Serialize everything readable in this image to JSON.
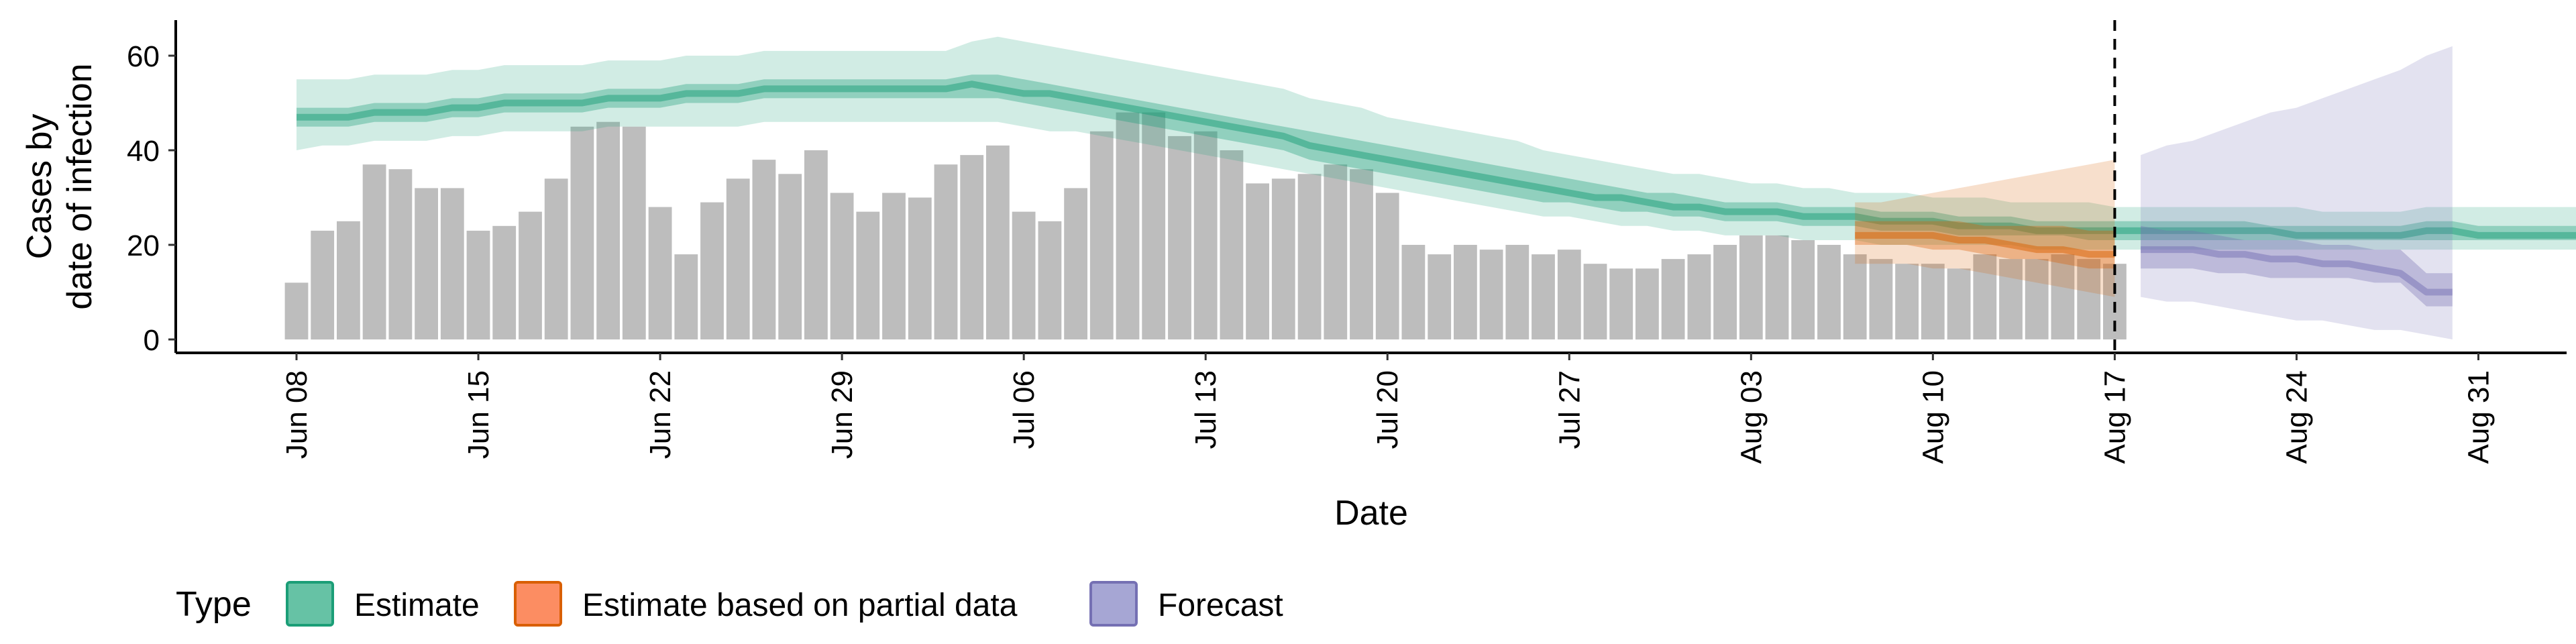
{
  "chart_data": {
    "type": "bar",
    "xlabel": "Date",
    "ylabel": [
      "Cases by",
      "date of infection"
    ],
    "ylim": [
      -3,
      67
    ],
    "y_ticks": [
      0,
      20,
      40,
      60
    ],
    "x_ticks": [
      "Jun 08",
      "Jun 15",
      "Jun 22",
      "Jun 29",
      "Jul 06",
      "Jul 13",
      "Jul 20",
      "Jul 27",
      "Aug 03",
      "Aug 10",
      "Aug 17",
      "Aug 24",
      "Aug 31"
    ],
    "vline_date": "Aug 17",
    "grid": false,
    "legend_position": "bottom-left",
    "legend_title": "Type",
    "legend": [
      {
        "key": "estimate",
        "label": "Estimate",
        "fill": "#66c2a5",
        "stroke": "#1b9e77"
      },
      {
        "key": "partial",
        "label": "Estimate based on partial data",
        "fill": "#fc8d62",
        "stroke": "#d95f02"
      },
      {
        "key": "forecast",
        "label": "Forecast",
        "fill": "#a6a6d4",
        "stroke": "#7570b3"
      }
    ],
    "colors": {
      "bars": "#bdbdbd",
      "estimate": "#1b9e77",
      "partial": "#d95f02",
      "forecast": "#7570b3"
    },
    "bars": {
      "start_date": "Jun 08",
      "values": [
        12,
        23,
        25,
        37,
        36,
        32,
        32,
        23,
        24,
        27,
        34,
        45,
        46,
        45,
        28,
        18,
        29,
        34,
        38,
        35,
        40,
        31,
        27,
        31,
        30,
        37,
        39,
        41,
        27,
        25,
        32,
        44,
        48,
        48,
        43,
        44,
        40,
        33,
        34,
        35,
        37,
        36,
        31,
        20,
        18,
        20,
        19,
        20,
        18,
        19,
        16,
        15,
        15,
        17,
        18,
        20,
        22,
        22,
        21,
        20,
        18,
        17,
        16,
        16,
        15,
        18,
        17,
        17,
        18,
        17,
        16
      ]
    },
    "bands": [
      {
        "type": "estimate",
        "start_date": "Jun 08",
        "median": [
          47,
          47,
          47,
          48,
          48,
          48,
          49,
          49,
          50,
          50,
          50,
          50,
          51,
          51,
          51,
          52,
          52,
          52,
          53,
          53,
          53,
          53,
          53,
          53,
          53,
          53,
          54,
          53,
          52,
          52,
          51,
          50,
          49,
          48,
          47,
          46,
          45,
          44,
          43,
          41,
          40,
          39,
          38,
          37,
          36,
          35,
          34,
          33,
          32,
          31,
          30,
          30,
          29,
          28,
          28,
          27,
          27,
          27,
          26,
          26,
          26,
          25,
          25,
          25,
          24,
          24,
          24,
          23,
          23,
          23,
          23,
          23,
          23,
          23,
          23,
          23,
          23,
          22,
          22,
          22,
          22,
          22,
          23,
          23,
          22,
          22,
          22,
          22,
          22,
          22
        ],
        "lower_inner": [
          45,
          45,
          45,
          46,
          46,
          46,
          47,
          47,
          48,
          48,
          48,
          48,
          49,
          49,
          49,
          50,
          50,
          50,
          51,
          51,
          51,
          51,
          51,
          51,
          51,
          51,
          51,
          51,
          50,
          49,
          48,
          47,
          46,
          45,
          44,
          43,
          42,
          41,
          40,
          38,
          37,
          36,
          35,
          34,
          33,
          32,
          31,
          30,
          29,
          29,
          28,
          27,
          27,
          26,
          26,
          25,
          25,
          25,
          24,
          24,
          24,
          23,
          23,
          23,
          22,
          22,
          22,
          22,
          22,
          21,
          21,
          21,
          21,
          21,
          21,
          21,
          21,
          21,
          21,
          21,
          21,
          21,
          21,
          21,
          21,
          21,
          21,
          21,
          21,
          21
        ],
        "upper_inner": [
          49,
          49,
          49,
          50,
          50,
          50,
          51,
          51,
          52,
          52,
          52,
          52,
          53,
          53,
          53,
          54,
          54,
          54,
          55,
          55,
          55,
          55,
          55,
          55,
          55,
          55,
          56,
          56,
          55,
          54,
          53,
          52,
          51,
          50,
          49,
          48,
          47,
          46,
          45,
          44,
          43,
          42,
          41,
          40,
          39,
          38,
          37,
          36,
          35,
          34,
          33,
          32,
          31,
          31,
          30,
          29,
          29,
          29,
          28,
          28,
          28,
          27,
          27,
          27,
          26,
          26,
          26,
          25,
          25,
          25,
          25,
          25,
          25,
          25,
          25,
          25,
          24,
          24,
          24,
          24,
          24,
          24,
          25,
          25,
          24,
          24,
          24,
          24,
          24,
          24
        ],
        "lower_outer": [
          40,
          41,
          41,
          42,
          42,
          42,
          43,
          43,
          44,
          44,
          44,
          44,
          45,
          45,
          45,
          45,
          45,
          45,
          46,
          46,
          46,
          46,
          46,
          46,
          46,
          46,
          46,
          46,
          45,
          44,
          44,
          43,
          42,
          41,
          40,
          39,
          38,
          37,
          36,
          35,
          34,
          33,
          32,
          31,
          30,
          29,
          28,
          27,
          26,
          26,
          25,
          24,
          24,
          23,
          23,
          22,
          22,
          22,
          21,
          21,
          21,
          20,
          20,
          20,
          20,
          20,
          20,
          19,
          19,
          19,
          19,
          19,
          19,
          19,
          19,
          19,
          19,
          19,
          19,
          19,
          19,
          19,
          19,
          19,
          19,
          19,
          19,
          19,
          19,
          19
        ],
        "upper_outer": [
          55,
          55,
          55,
          56,
          56,
          56,
          57,
          57,
          58,
          58,
          58,
          58,
          59,
          59,
          59,
          60,
          60,
          60,
          61,
          61,
          61,
          61,
          61,
          61,
          61,
          61,
          63,
          64,
          63,
          62,
          61,
          60,
          59,
          58,
          57,
          56,
          55,
          54,
          53,
          51,
          50,
          49,
          47,
          46,
          45,
          44,
          43,
          42,
          40,
          39,
          38,
          37,
          36,
          35,
          35,
          34,
          33,
          33,
          32,
          32,
          31,
          31,
          31,
          30,
          30,
          30,
          29,
          29,
          29,
          29,
          28,
          28,
          28,
          28,
          28,
          28,
          28,
          28,
          27,
          27,
          27,
          27,
          28,
          28,
          28,
          28,
          28,
          28,
          28,
          29
        ]
      },
      {
        "type": "partial",
        "start_date": "Aug 07",
        "median": [
          22,
          22,
          22,
          22,
          21,
          21,
          20,
          19,
          19,
          18,
          18
        ],
        "lower_inner": [
          20,
          20,
          20,
          19,
          19,
          18,
          17,
          17,
          16,
          15,
          15
        ],
        "upper_inner": [
          25,
          25,
          25,
          25,
          25,
          24,
          24,
          24,
          24,
          23,
          23
        ],
        "lower_outer": [
          16,
          16,
          16,
          15,
          15,
          14,
          13,
          12,
          11,
          10,
          9
        ],
        "upper_outer": [
          29,
          29,
          30,
          31,
          32,
          33,
          34,
          35,
          36,
          37,
          38
        ]
      },
      {
        "type": "forecast",
        "start_date": "Aug 18",
        "median": [
          19,
          19,
          19,
          18,
          18,
          17,
          17,
          16,
          16,
          15,
          14,
          10,
          10
        ],
        "lower_inner": [
          15,
          15,
          15,
          14,
          14,
          13,
          13,
          13,
          13,
          12,
          12,
          7,
          7
        ],
        "upper_inner": [
          24,
          23,
          23,
          22,
          21,
          21,
          21,
          20,
          20,
          19,
          19,
          14,
          14
        ],
        "lower_outer": [
          9,
          8,
          8,
          7,
          6,
          5,
          4,
          4,
          3,
          2,
          2,
          1,
          0
        ],
        "upper_outer": [
          39,
          41,
          42,
          44,
          46,
          48,
          49,
          51,
          53,
          55,
          57,
          60,
          62
        ]
      }
    ]
  }
}
